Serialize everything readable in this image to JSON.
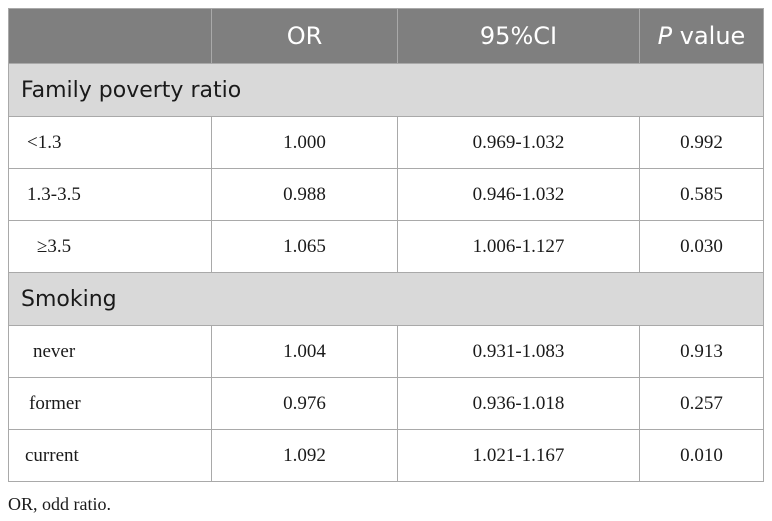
{
  "table": {
    "columns": {
      "col0": "",
      "or": "OR",
      "ci": "95%CI",
      "p_italic": "P",
      "p_rest": " value"
    },
    "sections": [
      {
        "title": "Family poverty ratio",
        "rows": [
          {
            "label": "<1.3",
            "or": "1.000",
            "ci": "0.969-1.032",
            "p": "0.992"
          },
          {
            "label": "1.3-3.5",
            "or": "0.988",
            "ci": "0.946-1.032",
            "p": "0.585"
          },
          {
            "label": "≥3.5",
            "or": "1.065",
            "ci": "1.006-1.127",
            "p": "0.030"
          }
        ]
      },
      {
        "title": "Smoking",
        "rows": [
          {
            "label": "never",
            "or": "1.004",
            "ci": "0.931-1.083",
            "p": "0.913"
          },
          {
            "label": "former",
            "or": "0.976",
            "ci": "0.936-1.018",
            "p": "0.257"
          },
          {
            "label": "current",
            "or": "1.092",
            "ci": "1.021-1.167",
            "p": "0.010"
          }
        ]
      }
    ]
  },
  "footnote": "OR, odd ratio."
}
